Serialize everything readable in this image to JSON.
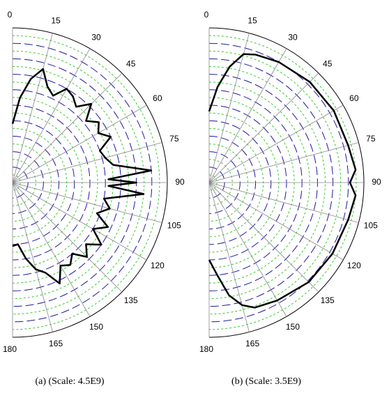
{
  "chart_data": [
    {
      "type": "polar",
      "title": "(a) (Scale: 4.5E9)",
      "color": "#000000",
      "x": [
        0,
        5,
        10,
        15,
        20,
        25,
        30,
        35,
        40,
        45,
        50,
        55,
        60,
        65,
        70,
        75,
        80,
        85,
        88,
        90,
        92,
        95,
        100,
        105,
        110,
        115,
        120,
        125,
        130,
        135,
        140,
        145,
        150,
        155,
        160,
        165,
        170,
        175,
        180
      ],
      "values": [
        0.38,
        0.55,
        0.68,
        0.76,
        0.66,
        0.62,
        0.7,
        0.68,
        0.64,
        0.72,
        0.62,
        0.68,
        0.64,
        0.7,
        0.6,
        0.62,
        0.66,
        0.9,
        0.62,
        0.8,
        0.62,
        0.85,
        0.6,
        0.65,
        0.58,
        0.68,
        0.6,
        0.7,
        0.62,
        0.68,
        0.6,
        0.65,
        0.62,
        0.72,
        0.62,
        0.58,
        0.5,
        0.4,
        0.41
      ],
      "xlim": [
        0,
        180
      ],
      "xticks": [
        0,
        15,
        30,
        45,
        60,
        75,
        90,
        105,
        120,
        135,
        150,
        165,
        180
      ],
      "ylim": [
        0,
        1
      ],
      "yticks": [
        0.05,
        0.1,
        0.15,
        0.2,
        0.25,
        0.3,
        0.35,
        0.4,
        0.45,
        0.5,
        0.55,
        0.6,
        0.65,
        0.7,
        0.75,
        0.8,
        0.85,
        0.9,
        0.95,
        1
      ],
      "grid": true
    },
    {
      "type": "polar",
      "title": "(b) (Scale: 3.5E9)",
      "color": "#000000",
      "x": [
        0,
        5,
        10,
        15,
        20,
        30,
        45,
        60,
        75,
        85,
        90,
        95,
        105,
        120,
        135,
        150,
        160,
        165,
        170,
        175,
        180
      ],
      "values": [
        0.46,
        0.62,
        0.76,
        0.86,
        0.88,
        0.9,
        0.92,
        0.93,
        0.93,
        0.95,
        0.91,
        0.95,
        0.93,
        0.92,
        0.91,
        0.88,
        0.86,
        0.82,
        0.74,
        0.6,
        0.5
      ],
      "xlim": [
        0,
        180
      ],
      "xticks": [
        0,
        15,
        30,
        45,
        60,
        75,
        90,
        105,
        120,
        135,
        150,
        165,
        180
      ],
      "ylim": [
        0,
        1
      ],
      "yticks": [
        0.05,
        0.1,
        0.15,
        0.2,
        0.25,
        0.3,
        0.35,
        0.4,
        0.45,
        0.5,
        0.55,
        0.6,
        0.65,
        0.7,
        0.75,
        0.8,
        0.85,
        0.9,
        0.95,
        1
      ],
      "grid": true
    }
  ]
}
